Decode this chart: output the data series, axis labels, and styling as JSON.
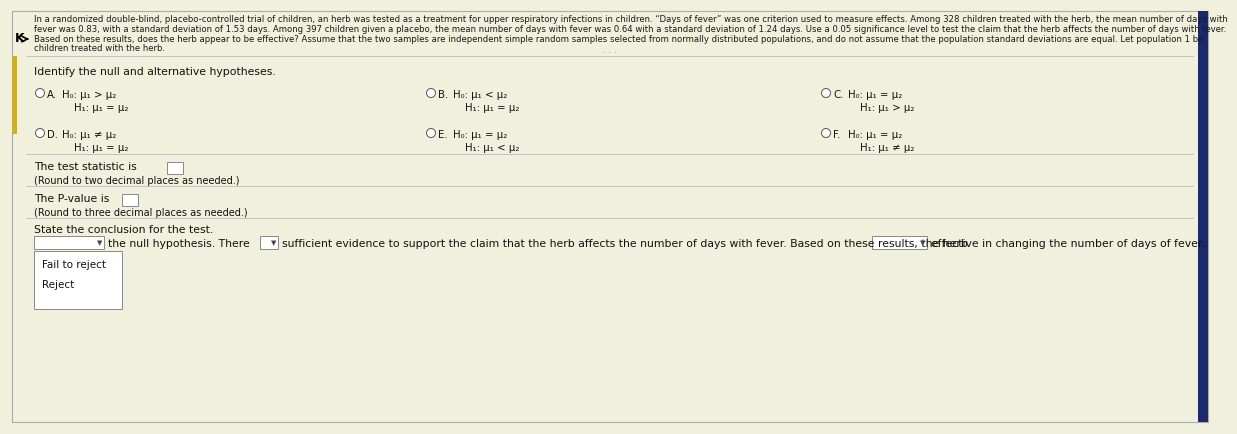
{
  "bg_color": "#f0f0dc",
  "bg_top": "#f0f0dc",
  "bg_bottom": "#f0f0dc",
  "text_color": "#111111",
  "para_color": "#1a1a1a",
  "sep_color": "#bbbbbb",
  "radio_ec": "#555555",
  "box_ec": "#888888",
  "para_lines": [
    "In a randomized double-blind, placebo-controlled trial of children, an herb was tested as a treatment for upper respiratory infections in children. “Days of fever” was one criterion used to measure effects. Among 328 children treated with the herb, the mean number of days with",
    "fever was 0.83, with a standard deviation of 1.53 days. Among 397 children given a placebo, the mean number of days with fever was 0.64 with a standard deviation of 1.24 days. Use a 0.05 significance level to test the claim that the herb affects the number of days with fever.",
    "Based on these results, does the herb appear to be effective? Assume that the two samples are independent simple random samples selected from normally distributed populations, and do not assume that the population standard deviations are equal. Let population 1 be",
    "children treated with the herb."
  ],
  "identify_text": "Identify the null and alternative hypotheses.",
  "optA": [
    "H₀: μ₁ > μ₂",
    "H₁: μ₁ = μ₂"
  ],
  "optB": [
    "H₀: μ₁ < μ₂",
    "H₁: μ₁ = μ₂"
  ],
  "optC": [
    "H₀: μ₁ = μ₂",
    "H₁: μ₁ > μ₂"
  ],
  "optD": [
    "H₀: μ₁ ≠ μ₂",
    "H₁: μ₁ = μ₂"
  ],
  "optE": [
    "H₀: μ₁ = μ₂",
    "H₁: μ₁ < μ₂"
  ],
  "optF": [
    "H₀: μ₁ = μ₂",
    "H₁: μ₁ ≠ μ₂"
  ],
  "test_stat_label": "The test statistic is",
  "round2_label": "(Round to two decimal places as needed.)",
  "pvalue_label": "The P-value is",
  "round3_label": "(Round to three decimal places as needed.)",
  "conclusion_label": "State the conclusion for the test.",
  "conc_mid": "the null hypothesis. There",
  "conc_mid2": "sufficient evidence to support the claim that the herb affects the number of days with fever. Based on these results, the herb",
  "conc_end": "effective in changing the number of days of fever.",
  "dd1_opt1": "Fail to reject",
  "dd1_opt2": "Reject",
  "accent_color": "#c8b030",
  "left_border_color": "#3050a0",
  "outer_border_color": "#aaaaaa"
}
